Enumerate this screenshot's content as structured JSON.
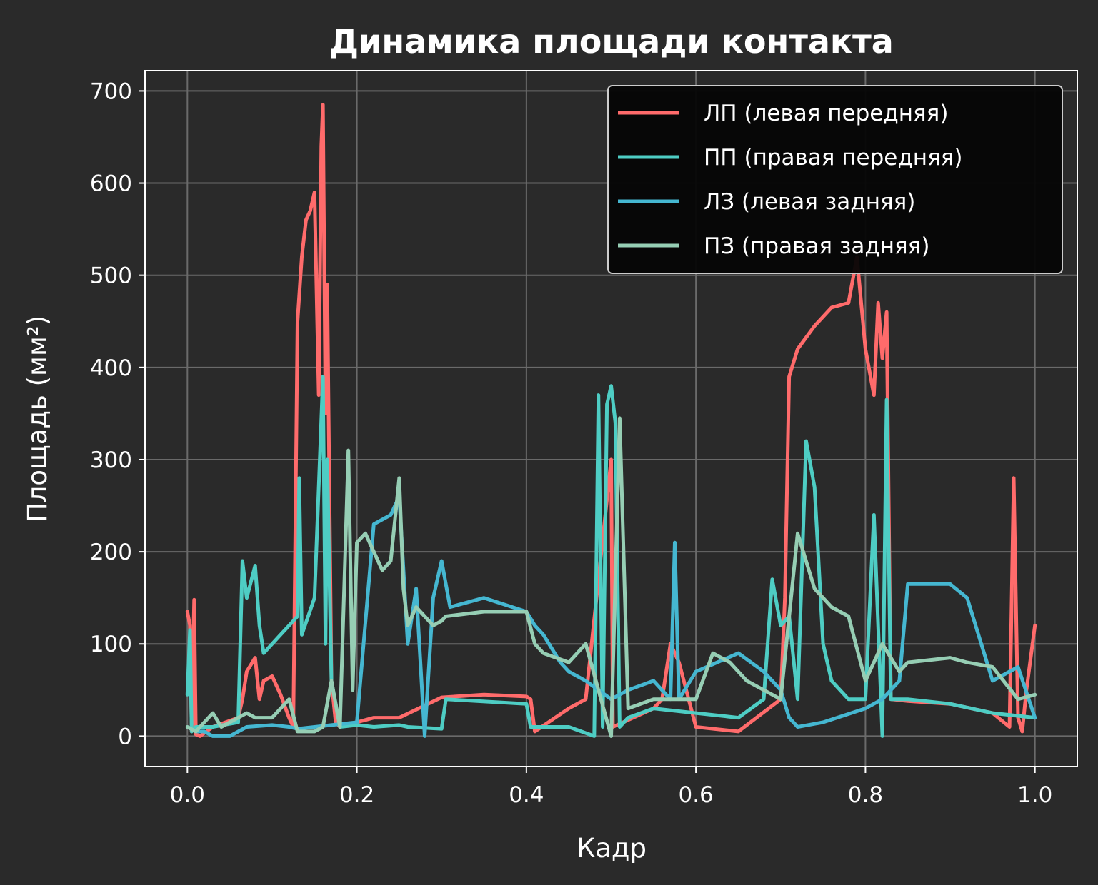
{
  "chart_data": {
    "type": "line",
    "title": "Динамика площади контакта",
    "xlabel": "Кадр",
    "ylabel": "Площадь (мм²)",
    "xlim": [
      -0.05,
      1.05
    ],
    "ylim": [
      -33,
      722
    ],
    "xticks": [
      0.0,
      0.2,
      0.4,
      0.6,
      0.8,
      1.0
    ],
    "xtick_labels": [
      "0.0",
      "0.2",
      "0.4",
      "0.6",
      "0.8",
      "1.0"
    ],
    "yticks": [
      0,
      100,
      200,
      300,
      400,
      500,
      600,
      700
    ],
    "ytick_labels": [
      "0",
      "100",
      "200",
      "300",
      "400",
      "500",
      "600",
      "700"
    ],
    "grid": true,
    "legend_position": "top-right",
    "colors": {
      "background": "#2a2a2a",
      "axes": "#ffffff",
      "grid": "#6a6a6a",
      "legend_bg": "#050505"
    },
    "series": [
      {
        "name": "ЛП (левая передняя)",
        "color": "#ff6b6b",
        "x": [
          0.0,
          0.003,
          0.005,
          0.008,
          0.01,
          0.015,
          0.03,
          0.06,
          0.065,
          0.07,
          0.08,
          0.085,
          0.09,
          0.1,
          0.11,
          0.12,
          0.125,
          0.13,
          0.135,
          0.14,
          0.145,
          0.15,
          0.155,
          0.158,
          0.16,
          0.163,
          0.165,
          0.17,
          0.175,
          0.18,
          0.2,
          0.22,
          0.25,
          0.3,
          0.35,
          0.4,
          0.405,
          0.41,
          0.45,
          0.47,
          0.5,
          0.502,
          0.55,
          0.56,
          0.57,
          0.58,
          0.6,
          0.65,
          0.7,
          0.705,
          0.71,
          0.72,
          0.74,
          0.76,
          0.78,
          0.79,
          0.8,
          0.81,
          0.815,
          0.82,
          0.825,
          0.83,
          0.85,
          0.9,
          0.95,
          0.97,
          0.975,
          0.98,
          0.985,
          0.99,
          1.0
        ],
        "y": [
          135,
          120,
          5,
          148,
          2,
          0,
          10,
          20,
          40,
          70,
          85,
          40,
          60,
          65,
          45,
          20,
          10,
          450,
          520,
          560,
          570,
          590,
          370,
          640,
          685,
          350,
          490,
          60,
          15,
          10,
          15,
          20,
          20,
          42,
          45,
          43,
          40,
          5,
          30,
          40,
          300,
          10,
          30,
          40,
          100,
          80,
          10,
          5,
          40,
          150,
          390,
          420,
          445,
          465,
          470,
          520,
          420,
          370,
          470,
          410,
          460,
          40,
          38,
          35,
          25,
          10,
          280,
          20,
          5,
          50,
          120
        ]
      },
      {
        "name": "ПП (правая передняя)",
        "color": "#4ecdc4",
        "x": [
          0.0,
          0.003,
          0.005,
          0.01,
          0.03,
          0.06,
          0.065,
          0.07,
          0.08,
          0.085,
          0.09,
          0.1,
          0.11,
          0.12,
          0.13,
          0.132,
          0.135,
          0.15,
          0.16,
          0.163,
          0.165,
          0.17,
          0.18,
          0.2,
          0.22,
          0.25,
          0.26,
          0.3,
          0.305,
          0.4,
          0.405,
          0.45,
          0.48,
          0.485,
          0.49,
          0.495,
          0.5,
          0.505,
          0.51,
          0.52,
          0.55,
          0.6,
          0.65,
          0.68,
          0.69,
          0.7,
          0.71,
          0.72,
          0.73,
          0.74,
          0.75,
          0.76,
          0.78,
          0.8,
          0.81,
          0.82,
          0.825,
          0.83,
          0.85,
          0.9,
          0.95,
          1.0
        ],
        "y": [
          45,
          115,
          5,
          10,
          10,
          15,
          190,
          150,
          185,
          120,
          90,
          100,
          110,
          120,
          130,
          280,
          110,
          150,
          390,
          100,
          300,
          60,
          10,
          12,
          10,
          12,
          10,
          8,
          40,
          35,
          10,
          10,
          0,
          370,
          10,
          360,
          380,
          340,
          10,
          20,
          30,
          25,
          20,
          40,
          170,
          120,
          130,
          40,
          320,
          270,
          100,
          60,
          40,
          40,
          240,
          0,
          365,
          40,
          40,
          35,
          25,
          20
        ]
      },
      {
        "name": "ЛЗ (левая задняя)",
        "color": "#45b7d1",
        "x": [
          0.0,
          0.01,
          0.02,
          0.03,
          0.05,
          0.07,
          0.1,
          0.12,
          0.13,
          0.15,
          0.17,
          0.2,
          0.22,
          0.24,
          0.25,
          0.26,
          0.27,
          0.28,
          0.29,
          0.3,
          0.31,
          0.35,
          0.4,
          0.41,
          0.42,
          0.44,
          0.45,
          0.47,
          0.5,
          0.52,
          0.55,
          0.57,
          0.575,
          0.58,
          0.6,
          0.65,
          0.68,
          0.7,
          0.71,
          0.72,
          0.75,
          0.8,
          0.82,
          0.84,
          0.85,
          0.9,
          0.92,
          0.95,
          0.97,
          0.98,
          1.0
        ],
        "y": [
          10,
          5,
          5,
          0,
          0,
          10,
          12,
          10,
          8,
          10,
          12,
          15,
          230,
          240,
          260,
          100,
          160,
          0,
          150,
          190,
          140,
          150,
          135,
          120,
          110,
          80,
          70,
          60,
          40,
          50,
          60,
          40,
          210,
          40,
          70,
          90,
          70,
          50,
          20,
          10,
          15,
          30,
          40,
          60,
          165,
          165,
          150,
          60,
          70,
          75,
          20
        ]
      },
      {
        "name": "ПЗ (правая задняя)",
        "color": "#96ceb4",
        "x": [
          0.0,
          0.01,
          0.02,
          0.03,
          0.04,
          0.05,
          0.06,
          0.07,
          0.08,
          0.1,
          0.12,
          0.13,
          0.15,
          0.16,
          0.17,
          0.18,
          0.19,
          0.195,
          0.2,
          0.21,
          0.22,
          0.23,
          0.24,
          0.25,
          0.255,
          0.26,
          0.27,
          0.28,
          0.29,
          0.3,
          0.305,
          0.35,
          0.4,
          0.41,
          0.42,
          0.45,
          0.47,
          0.5,
          0.51,
          0.52,
          0.55,
          0.58,
          0.6,
          0.62,
          0.64,
          0.66,
          0.68,
          0.7,
          0.72,
          0.74,
          0.76,
          0.78,
          0.8,
          0.82,
          0.84,
          0.85,
          0.9,
          0.92,
          0.95,
          0.98,
          1.0
        ],
        "y": [
          10,
          5,
          15,
          25,
          10,
          15,
          20,
          25,
          20,
          20,
          40,
          5,
          5,
          10,
          60,
          10,
          310,
          50,
          210,
          220,
          200,
          180,
          190,
          280,
          160,
          120,
          140,
          130,
          120,
          125,
          130,
          135,
          135,
          100,
          90,
          80,
          100,
          0,
          345,
          30,
          40,
          40,
          40,
          90,
          80,
          60,
          50,
          40,
          220,
          160,
          140,
          130,
          60,
          100,
          70,
          80,
          85,
          80,
          75,
          40,
          45
        ]
      }
    ]
  }
}
